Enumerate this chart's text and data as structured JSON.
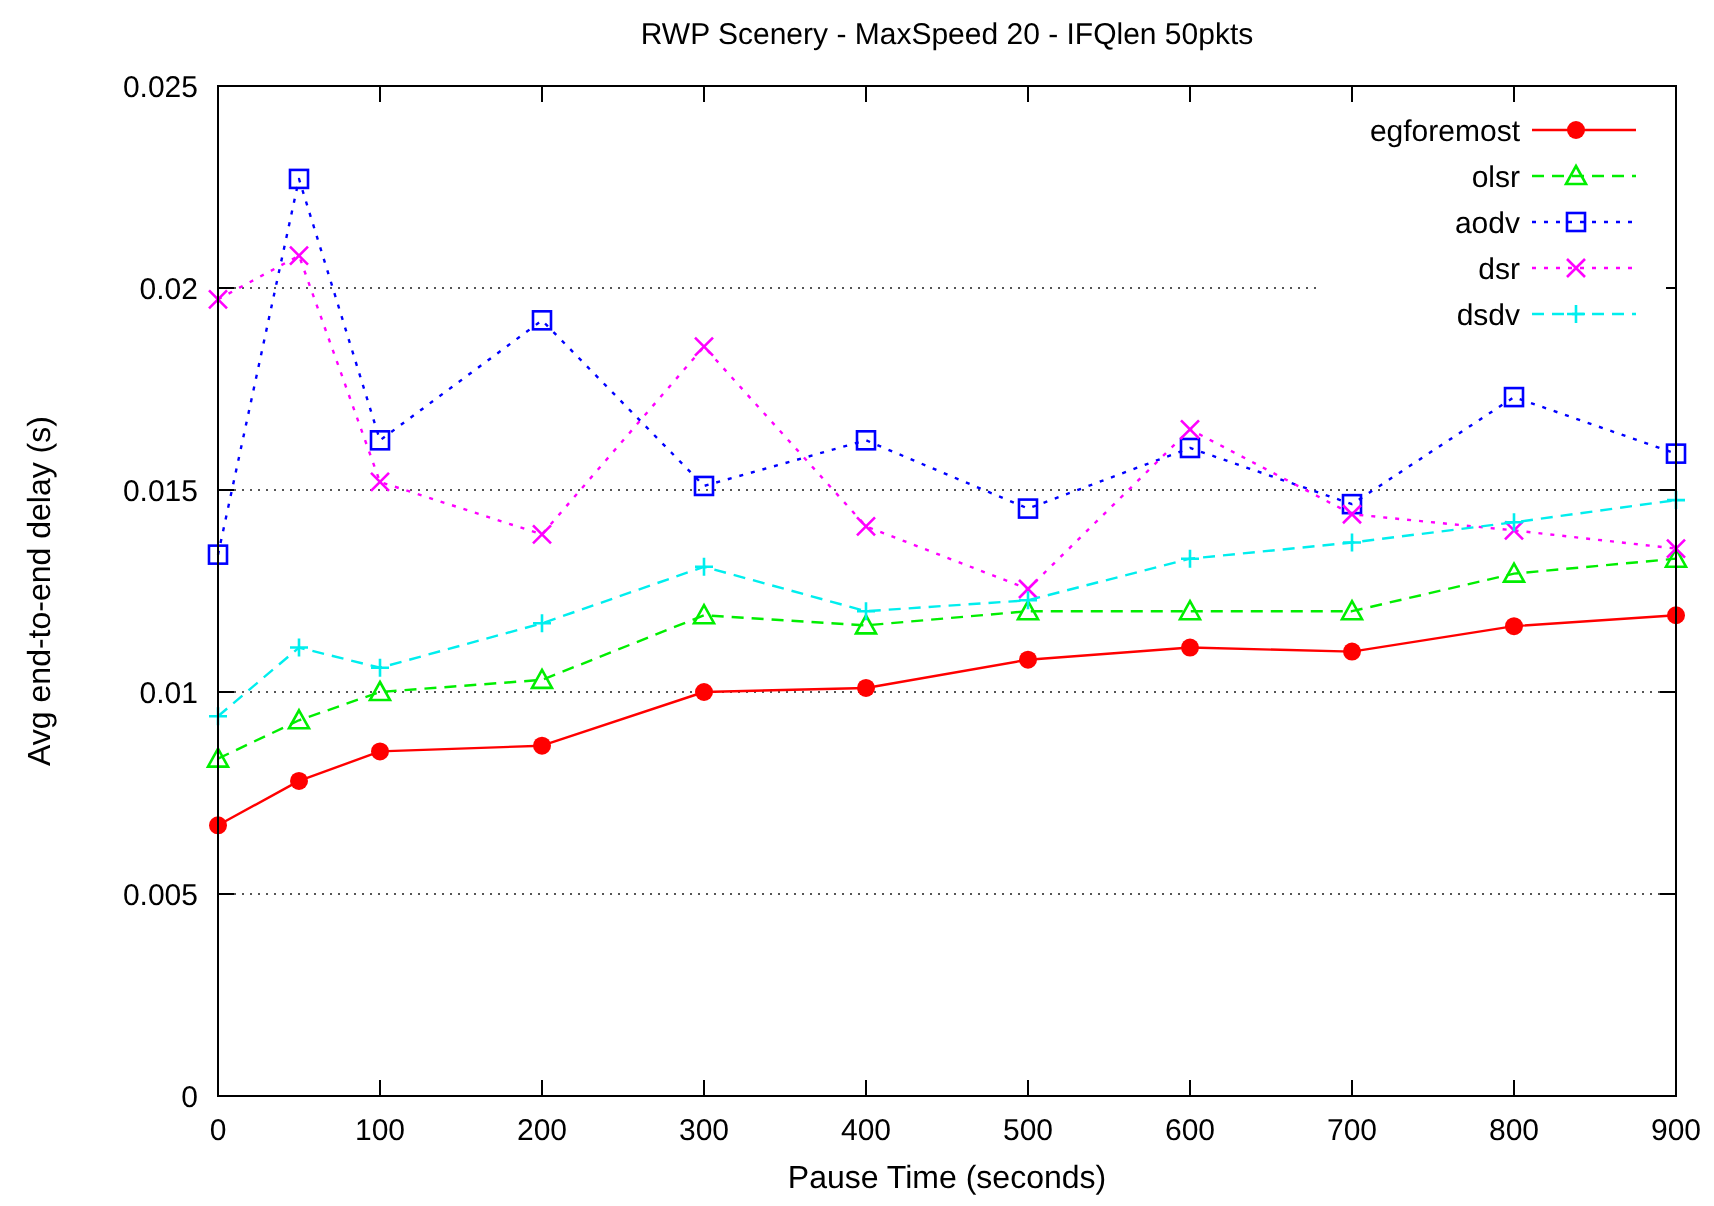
{
  "chart_data": {
    "type": "line",
    "title": "RWP Scenery - MaxSpeed 20 - IFQlen 50pkts",
    "xlabel": "Pause Time (seconds)",
    "ylabel": "Avg end-to-end delay (s)",
    "x": [
      0,
      50,
      100,
      200,
      300,
      400,
      500,
      600,
      700,
      800,
      900
    ],
    "xlim": [
      0,
      900
    ],
    "xticks": [
      0,
      100,
      200,
      300,
      400,
      500,
      600,
      700,
      800,
      900
    ],
    "ylim": [
      0,
      0.025
    ],
    "yticks": [
      0,
      0.005,
      0.01,
      0.015,
      0.02,
      0.025
    ],
    "grid": "y",
    "legend": "top right",
    "series": [
      {
        "name": "egforemost",
        "color": "#ff0000",
        "marker": "circle",
        "line_style": "solid",
        "values": [
          0.0067,
          0.0078,
          0.00853,
          0.00867,
          0.01,
          0.0101,
          0.0108,
          0.0111,
          0.011,
          0.01163,
          0.0119
        ]
      },
      {
        "name": "olsr",
        "color": "#00ee00",
        "marker": "triangle",
        "line_style": "dashed",
        "values": [
          0.00835,
          0.0093,
          0.01,
          0.0103,
          0.0119,
          0.01165,
          0.012,
          0.012,
          0.012,
          0.01293,
          0.0133
        ]
      },
      {
        "name": "aodv",
        "color": "#0000ff",
        "marker": "square",
        "line_style": "dotted",
        "values": [
          0.0134,
          0.0227,
          0.01623,
          0.0192,
          0.0151,
          0.01623,
          0.01454,
          0.01604,
          0.01465,
          0.0173,
          0.0159
        ]
      },
      {
        "name": "dsr",
        "color": "#ff00ff",
        "marker": "cross",
        "line_style": "dotted",
        "values": [
          0.01972,
          0.0208,
          0.0152,
          0.0139,
          0.01855,
          0.0141,
          0.01255,
          0.0165,
          0.0144,
          0.014,
          0.01355
        ]
      },
      {
        "name": "dsdv",
        "color": "#00eeee",
        "marker": "plus",
        "line_style": "dashed",
        "values": [
          0.0094,
          0.0111,
          0.0106,
          0.0117,
          0.0131,
          0.012,
          0.01227,
          0.0133,
          0.0137,
          0.0142,
          0.01475
        ]
      }
    ]
  }
}
